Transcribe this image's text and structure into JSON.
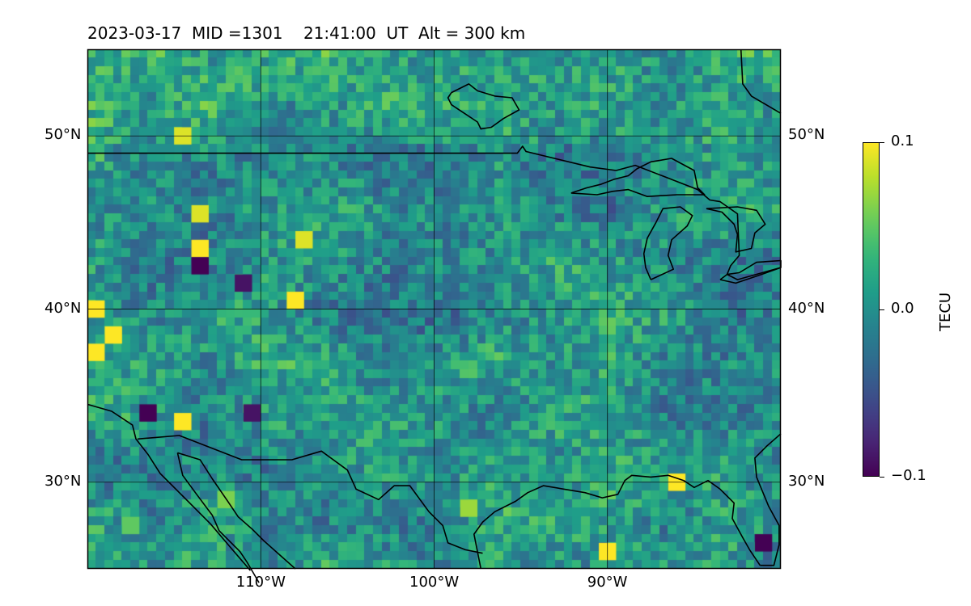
{
  "title": "2023-03-17  MID =1301    21:41:00  UT  Alt = 300 km",
  "map": {
    "lon_range": [
      -120,
      -80
    ],
    "lat_range": [
      25,
      55
    ],
    "grid_lon": [
      -110,
      -100,
      -90
    ],
    "grid_lat": [
      30,
      40,
      50
    ],
    "lat_labels": [
      "30°N",
      "40°N",
      "50°N"
    ],
    "lon_labels": [
      "110°W",
      "100°W",
      "90°W"
    ],
    "data_resolution_deg": 0.5,
    "colormap": "viridis",
    "colors": {
      "coastline": "#000000",
      "gridline": "#000000"
    }
  },
  "colorbar": {
    "label": "TECU",
    "min": -0.1,
    "max": 0.1,
    "ticks": [
      0.1,
      0.0,
      -0.1
    ],
    "tick_labels": [
      "0.1",
      "0.0",
      "−0.1"
    ]
  },
  "highlights": [
    {
      "lon": -114.5,
      "lat": 50.0,
      "value": 0.09
    },
    {
      "lon": -113.5,
      "lat": 43.5,
      "value": 0.1
    },
    {
      "lon": -119.5,
      "lat": 37.5,
      "value": 0.1
    },
    {
      "lon": -119.5,
      "lat": 40.0,
      "value": 0.1
    },
    {
      "lon": -118.5,
      "lat": 38.5,
      "value": 0.1
    },
    {
      "lon": -113.5,
      "lat": 45.5,
      "value": 0.09
    },
    {
      "lon": -107.5,
      "lat": 44.0,
      "value": 0.09
    },
    {
      "lon": -113.5,
      "lat": 42.5,
      "value": -0.1
    },
    {
      "lon": -116.5,
      "lat": 34.0,
      "value": -0.1
    },
    {
      "lon": -110.5,
      "lat": 34.0,
      "value": -0.09
    },
    {
      "lon": -90.0,
      "lat": 26.0,
      "value": 0.1
    },
    {
      "lon": -86.0,
      "lat": 30.0,
      "value": 0.1
    },
    {
      "lon": -108.0,
      "lat": 40.5,
      "value": 0.1
    },
    {
      "lon": -114.5,
      "lat": 33.5,
      "value": 0.1
    },
    {
      "lon": -111.0,
      "lat": 41.5,
      "value": -0.09
    },
    {
      "lon": -81.0,
      "lat": 26.5,
      "value": -0.1
    },
    {
      "lon": -117.5,
      "lat": 27.5,
      "value": 0.05
    },
    {
      "lon": -112.0,
      "lat": 29.0,
      "value": 0.06
    },
    {
      "lon": -98.0,
      "lat": 28.5,
      "value": 0.07
    }
  ],
  "coastlines": [
    {
      "name": "us-canada-border",
      "points": [
        [
          -120,
          49
        ],
        [
          -95.2,
          49
        ],
        [
          -94.9,
          49.4
        ],
        [
          -94.7,
          49.1
        ],
        [
          -91,
          48.2
        ],
        [
          -89.5,
          48
        ],
        [
          -88.4,
          48.3
        ],
        [
          -84.8,
          46.9
        ],
        [
          -84.1,
          46.3
        ],
        [
          -83.5,
          46.2
        ],
        [
          -82.5,
          45.5
        ],
        [
          -82.4,
          43.1
        ],
        [
          -82.9,
          42.5
        ],
        [
          -83.1,
          42.0
        ],
        [
          -82.5,
          41.7
        ],
        [
          -80,
          42.4
        ]
      ]
    },
    {
      "name": "hudson-bay",
      "points": [
        [
          -99,
          52.5
        ],
        [
          -98,
          53
        ],
        [
          -97.5,
          52.6
        ],
        [
          -96.5,
          52.3
        ],
        [
          -95.5,
          52.2
        ],
        [
          -95.1,
          51.5
        ],
        [
          -96,
          51
        ],
        [
          -96.7,
          50.5
        ],
        [
          -97.3,
          50.4
        ],
        [
          -97.5,
          50.8
        ],
        [
          -98.4,
          51.4
        ],
        [
          -99,
          51.8
        ],
        [
          -99.2,
          52.2
        ],
        [
          -99,
          52.5
        ]
      ]
    },
    {
      "name": "lake-superior",
      "points": [
        [
          -92.1,
          46.7
        ],
        [
          -91.2,
          47.0
        ],
        [
          -90.4,
          47.2
        ],
        [
          -89.6,
          47.5
        ],
        [
          -88.8,
          47.7
        ],
        [
          -88.3,
          48.1
        ],
        [
          -87.5,
          48.5
        ],
        [
          -86.3,
          48.7
        ],
        [
          -85,
          48.0
        ],
        [
          -84.8,
          47.0
        ],
        [
          -84.4,
          46.6
        ],
        [
          -86.0,
          46.6
        ],
        [
          -87.7,
          46.5
        ],
        [
          -88.8,
          46.9
        ],
        [
          -89.7,
          46.8
        ],
        [
          -90.6,
          46.6
        ],
        [
          -92.1,
          46.7
        ]
      ]
    },
    {
      "name": "lake-michigan",
      "points": [
        [
          -87.5,
          41.7
        ],
        [
          -87.8,
          42.4
        ],
        [
          -87.9,
          43.2
        ],
        [
          -87.7,
          44.1
        ],
        [
          -87.2,
          45.0
        ],
        [
          -86.8,
          45.8
        ],
        [
          -85.8,
          45.9
        ],
        [
          -85.1,
          45.4
        ],
        [
          -85.4,
          44.8
        ],
        [
          -86.3,
          44.0
        ],
        [
          -86.5,
          43.1
        ],
        [
          -86.2,
          42.3
        ],
        [
          -87.5,
          41.7
        ]
      ]
    },
    {
      "name": "lake-huron",
      "points": [
        [
          -84.3,
          45.8
        ],
        [
          -83.4,
          45.6
        ],
        [
          -82.7,
          44.9
        ],
        [
          -82.5,
          44.3
        ],
        [
          -82.6,
          43.3
        ],
        [
          -81.7,
          43.5
        ],
        [
          -81.5,
          44.4
        ],
        [
          -80.9,
          44.9
        ],
        [
          -81.4,
          45.7
        ],
        [
          -82.5,
          45.9
        ],
        [
          -84.3,
          45.8
        ]
      ]
    },
    {
      "name": "lake-erie",
      "points": [
        [
          -83.5,
          41.7
        ],
        [
          -82.6,
          41.5
        ],
        [
          -81.4,
          41.9
        ],
        [
          -80,
          42.4
        ],
        [
          -80,
          42.8
        ],
        [
          -81.4,
          42.7
        ],
        [
          -82.4,
          42.1
        ],
        [
          -83.1,
          42.0
        ],
        [
          -83.5,
          41.7
        ]
      ]
    },
    {
      "name": "northeast-coast",
      "points": [
        [
          -82.3,
          55
        ],
        [
          -82.2,
          53
        ],
        [
          -81.7,
          52.3
        ],
        [
          -80,
          51.3
        ]
      ]
    },
    {
      "name": "west-coast-mexico",
      "points": [
        [
          -120,
          34.5
        ],
        [
          -118.6,
          34.1
        ],
        [
          -117.4,
          33.3
        ],
        [
          -117.2,
          32.5
        ],
        [
          -116.5,
          31.6
        ],
        [
          -115.8,
          30.5
        ],
        [
          -114.4,
          29.1
        ],
        [
          -112.9,
          27.6
        ],
        [
          -111.8,
          26.3
        ],
        [
          -110.6,
          24.9
        ]
      ]
    },
    {
      "name": "gulf-of-california-west",
      "points": [
        [
          -114.8,
          31.7
        ],
        [
          -114.5,
          30.4
        ],
        [
          -113.7,
          29.3
        ],
        [
          -112.8,
          28.1
        ],
        [
          -112.4,
          27.2
        ],
        [
          -111.2,
          26.0
        ],
        [
          -110.8,
          25.4
        ],
        [
          -110.1,
          24.2
        ]
      ]
    },
    {
      "name": "gulf-of-california-east",
      "points": [
        [
          -114.8,
          31.7
        ],
        [
          -113.5,
          31.3
        ],
        [
          -112.8,
          30.2
        ],
        [
          -111.9,
          28.9
        ],
        [
          -111.3,
          28.0
        ],
        [
          -110.5,
          27.3
        ],
        [
          -109.8,
          26.6
        ],
        [
          -108.9,
          25.8
        ],
        [
          -108,
          25
        ]
      ]
    },
    {
      "name": "us-mexico-border",
      "points": [
        [
          -117.1,
          32.5
        ],
        [
          -114.7,
          32.7
        ],
        [
          -111.1,
          31.3
        ],
        [
          -108.2,
          31.3
        ],
        [
          -106.5,
          31.8
        ],
        [
          -105.0,
          30.7
        ],
        [
          -104.5,
          29.6
        ],
        [
          -103.2,
          29.0
        ],
        [
          -102.3,
          29.8
        ],
        [
          -101.4,
          29.8
        ],
        [
          -100.3,
          28.3
        ],
        [
          -99.5,
          27.5
        ],
        [
          -99.2,
          26.5
        ],
        [
          -98.2,
          26.1
        ],
        [
          -97.2,
          25.9
        ]
      ]
    },
    {
      "name": "gulf-coast",
      "points": [
        [
          -97.3,
          25.0
        ],
        [
          -97.7,
          27.0
        ],
        [
          -97.2,
          27.7
        ],
        [
          -96.5,
          28.3
        ],
        [
          -95.3,
          28.9
        ],
        [
          -94.6,
          29.4
        ],
        [
          -93.7,
          29.8
        ],
        [
          -92.5,
          29.6
        ],
        [
          -91.3,
          29.4
        ],
        [
          -90.3,
          29.1
        ],
        [
          -89.4,
          29.3
        ],
        [
          -89.0,
          30.1
        ],
        [
          -88.6,
          30.4
        ],
        [
          -87.5,
          30.3
        ],
        [
          -86.5,
          30.4
        ],
        [
          -85.6,
          30.1
        ],
        [
          -85.0,
          29.7
        ],
        [
          -84.2,
          30.1
        ],
        [
          -83.5,
          29.6
        ],
        [
          -82.7,
          28.8
        ],
        [
          -82.8,
          27.9
        ],
        [
          -82.2,
          26.8
        ],
        [
          -81.8,
          26.1
        ],
        [
          -81.2,
          25.2
        ]
      ]
    },
    {
      "name": "florida-atlantic-coast",
      "points": [
        [
          -81.2,
          25.2
        ],
        [
          -80.4,
          25.2
        ],
        [
          -80.1,
          26.4
        ],
        [
          -80.1,
          27.5
        ],
        [
          -80.7,
          28.6
        ],
        [
          -81.4,
          30.3
        ],
        [
          -81.5,
          31.4
        ],
        [
          -80.8,
          32.1
        ],
        [
          -80,
          32.8
        ]
      ]
    }
  ]
}
